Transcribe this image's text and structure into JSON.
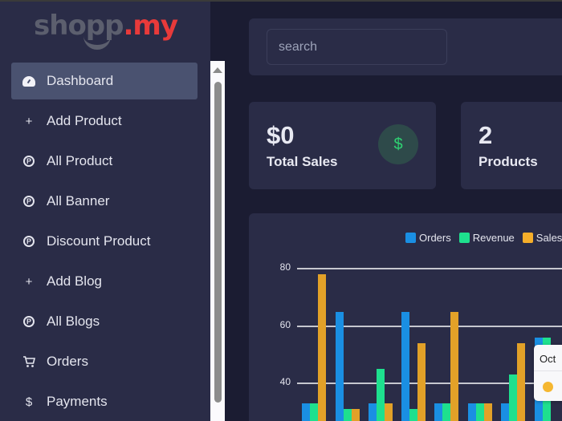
{
  "brand": {
    "part1": "shopp",
    "part2": ".my"
  },
  "sidebar": {
    "items": [
      {
        "label": "Dashboard",
        "icon": "dashboard-gauge-icon",
        "active": true
      },
      {
        "label": "Add Product",
        "icon": "plus-icon"
      },
      {
        "label": "All Product",
        "icon": "circle-p-icon"
      },
      {
        "label": "All Banner",
        "icon": "circle-p-icon"
      },
      {
        "label": "Discount Product",
        "icon": "circle-p-icon"
      },
      {
        "label": "Add Blog",
        "icon": "plus-icon"
      },
      {
        "label": "All Blogs",
        "icon": "circle-p-icon"
      },
      {
        "label": "Orders",
        "icon": "cart-icon"
      },
      {
        "label": "Payments",
        "icon": "dollar-icon"
      }
    ]
  },
  "search": {
    "placeholder": "search"
  },
  "cards": [
    {
      "value": "$0",
      "label": "Total Sales",
      "icon": "$",
      "icon_color": "#2fd172"
    },
    {
      "value": "2",
      "label": "Products"
    }
  ],
  "icons": {
    "plus": "+",
    "p": "P",
    "cart": "🛒",
    "dollar": "$"
  },
  "chart_data": {
    "type": "bar",
    "title": "",
    "legend": [
      "Orders",
      "Revenue",
      "Sales"
    ],
    "legend_position": "top-right",
    "colors": {
      "Orders": "#1a8fe3",
      "Revenue": "#1ee08e",
      "Sales": "#e2a128"
    },
    "y_ticks": [
      40,
      60,
      80
    ],
    "ylim": [
      0,
      80
    ],
    "grid": true,
    "series": [
      {
        "name": "Orders",
        "values": [
          33,
          65,
          33,
          65,
          33,
          33,
          33,
          56
        ]
      },
      {
        "name": "Revenue",
        "values": [
          33,
          31,
          45,
          31,
          33,
          33,
          43,
          56
        ]
      },
      {
        "name": "Sales",
        "values": [
          78,
          31,
          33,
          54,
          65,
          33,
          54,
          null
        ]
      }
    ],
    "tooltip": {
      "label": "Oct",
      "series_color": "#f5b731"
    }
  }
}
